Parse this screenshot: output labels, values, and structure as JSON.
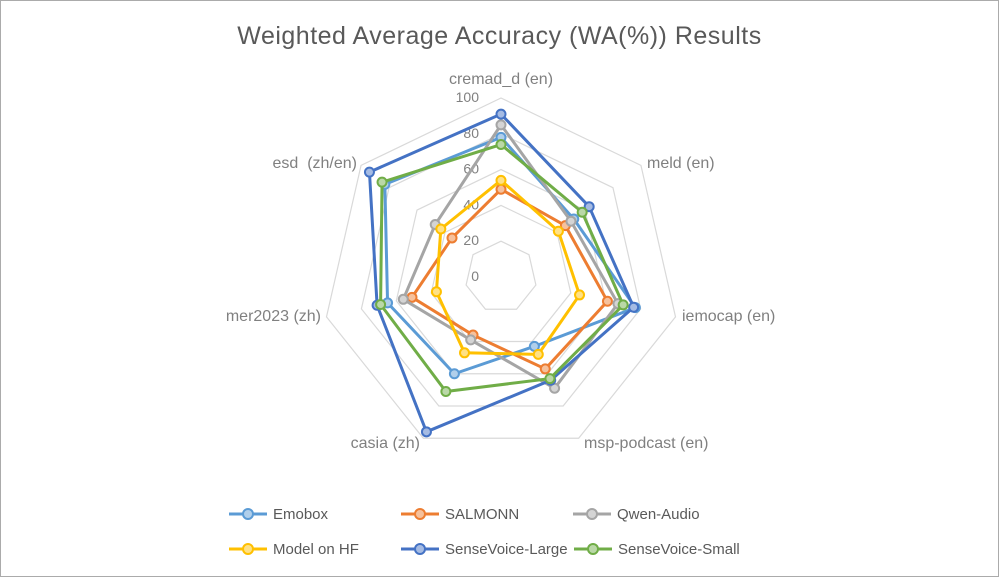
{
  "title": "Weighted Average Accuracy (WA(%)) Results",
  "chart_data": {
    "type": "radar",
    "categories": [
      "cremad_d (en)",
      "meld (en)",
      "iemocap (en)",
      "msp-podcast (en)",
      "casia (zh)",
      "mer2023 (zh)",
      "esd  (zh/en)"
    ],
    "ticks": [
      0,
      20,
      40,
      60,
      80,
      100
    ],
    "rmax": 100,
    "grid": "concentric-heptagon-rings, no radial spokes",
    "legend_position": "bottom-two-rows",
    "series": [
      {
        "name": "Emobox",
        "color": "#5B9BD5",
        "values": [
          78,
          52,
          77,
          43,
          60,
          65,
          83
        ]
      },
      {
        "name": "SALMONN",
        "color": "#ED7D31",
        "values": [
          49,
          46,
          61,
          57,
          36,
          51,
          35
        ]
      },
      {
        "name": "Qwen-Audio",
        "color": "#A5A5A5",
        "values": [
          85,
          50,
          67,
          69,
          39,
          56,
          47
        ]
      },
      {
        "name": "Model on HF",
        "color": "#FFC000",
        "values": [
          54,
          41,
          45,
          48,
          47,
          37,
          43
        ]
      },
      {
        "name": "SenseVoice-Large",
        "color": "#4472C4",
        "values": [
          91,
          63,
          76,
          64,
          96,
          71,
          94
        ]
      },
      {
        "name": "SenseVoice-Small",
        "color": "#70AD47",
        "values": [
          74,
          58,
          70,
          63,
          71,
          69,
          85
        ]
      }
    ]
  },
  "colors": {
    "title_text": "#595959",
    "axis_text": "#808080",
    "tick_text": "#808080",
    "gridline": "#D9D9D9",
    "legend_text": "#595959",
    "background": "#FFFFFF",
    "frame_border": "#ABABAB"
  }
}
